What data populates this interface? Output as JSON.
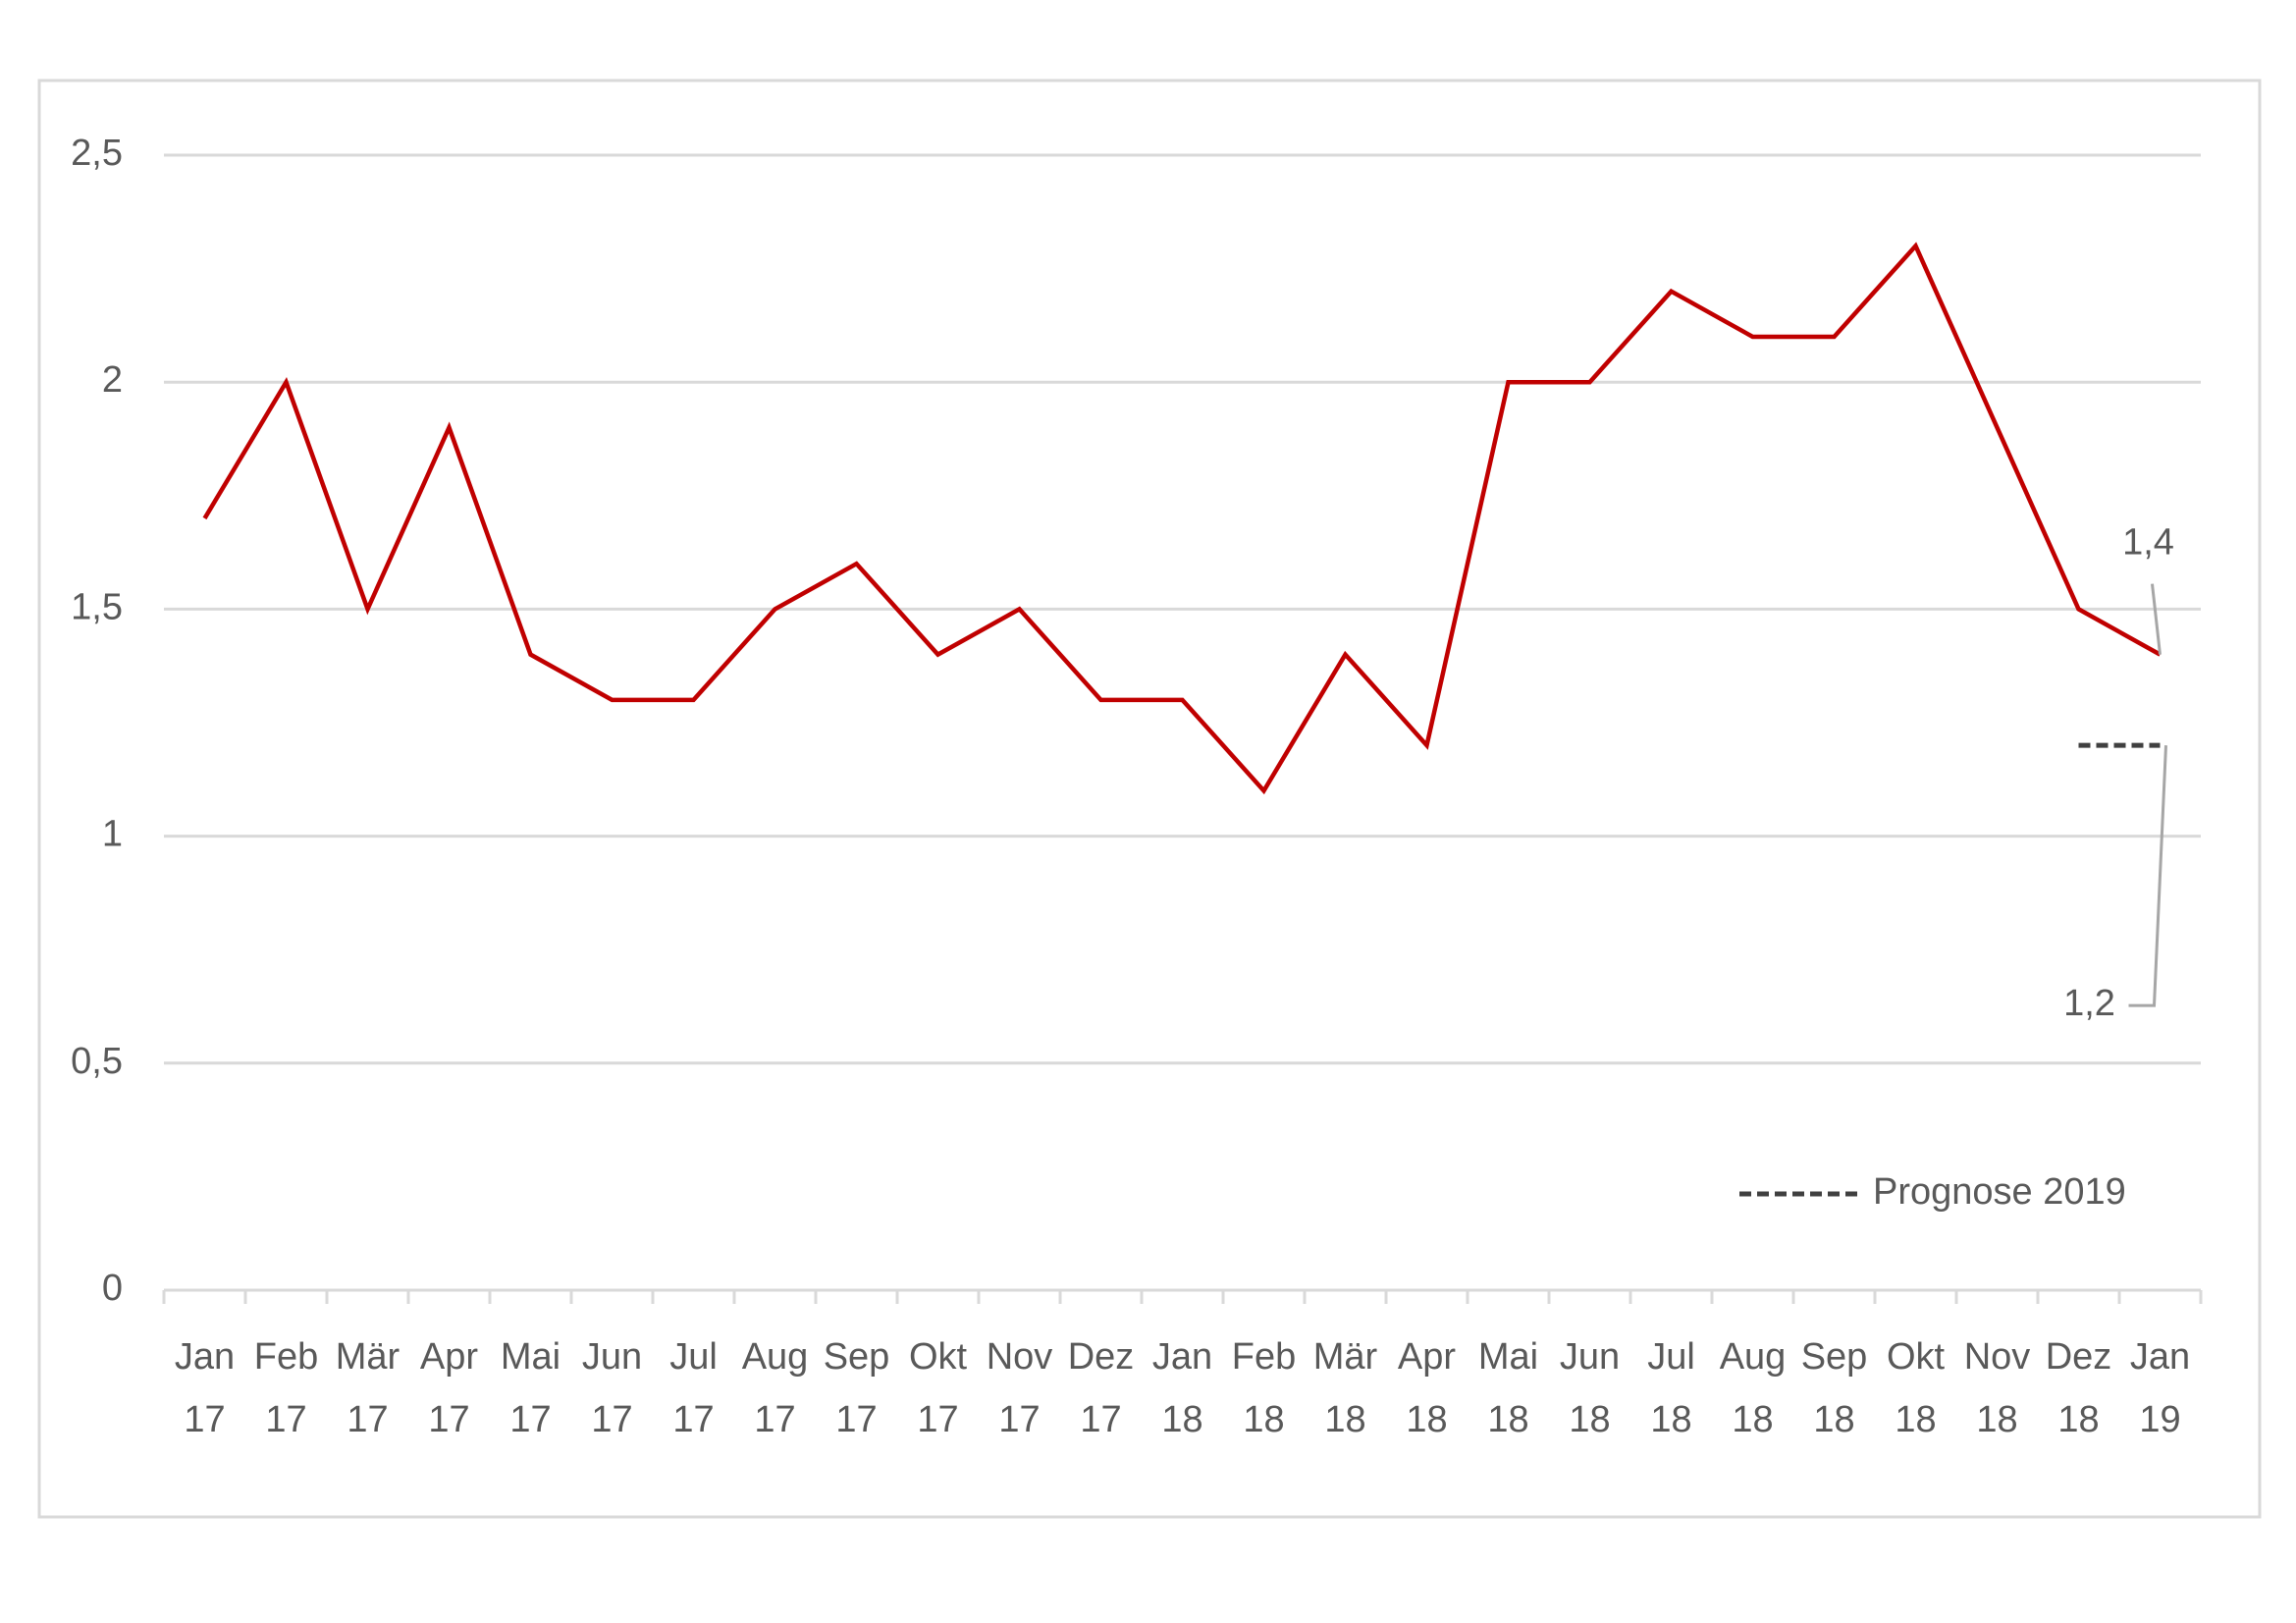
{
  "chart_data": {
    "type": "line",
    "categories": [
      "Jan 17",
      "Feb 17",
      "Mär 17",
      "Apr 17",
      "Mai 17",
      "Jun 17",
      "Jul 17",
      "Aug 17",
      "Sep 17",
      "Okt 17",
      "Nov 17",
      "Dez 17",
      "Jan 18",
      "Feb 18",
      "Mär 18",
      "Apr 18",
      "Mai 18",
      "Jun 18",
      "Jul 18",
      "Aug 18",
      "Sep 18",
      "Okt 18",
      "Nov 18",
      "Dez 18",
      "Jan 19"
    ],
    "series": [
      {
        "color": "#c00000",
        "dash": false,
        "show_in_legend": false,
        "values": [
          1.7,
          2.0,
          1.5,
          1.9,
          1.4,
          1.3,
          1.3,
          1.5,
          1.6,
          1.4,
          1.5,
          1.3,
          1.3,
          1.1,
          1.4,
          1.2,
          2.0,
          2.0,
          2.2,
          2.1,
          2.1,
          2.3,
          1.9,
          1.5,
          1.4
        ],
        "value_labels": [
          null,
          null,
          null,
          null,
          null,
          null,
          null,
          null,
          null,
          null,
          null,
          null,
          null,
          null,
          null,
          null,
          null,
          null,
          null,
          null,
          null,
          null,
          null,
          null,
          "1,4"
        ]
      },
      {
        "name": "Prognose 2019",
        "color": "#404040",
        "dash": true,
        "show_in_legend": true,
        "values": [
          null,
          null,
          null,
          null,
          null,
          null,
          null,
          null,
          null,
          null,
          null,
          null,
          null,
          null,
          null,
          null,
          null,
          null,
          null,
          null,
          null,
          null,
          null,
          1.2,
          1.2
        ],
        "value_labels": [
          null,
          null,
          null,
          null,
          null,
          null,
          null,
          null,
          null,
          null,
          null,
          null,
          null,
          null,
          null,
          null,
          null,
          null,
          null,
          null,
          null,
          null,
          null,
          null,
          "1,2"
        ]
      }
    ],
    "ylim": [
      0,
      2.5
    ],
    "yticks": [
      0,
      {
        "value": 0.5,
        "label": "0,5"
      },
      1,
      {
        "value": 1.5,
        "label": "1,5"
      },
      2,
      {
        "value": 2.5,
        "label": "2,5"
      }
    ],
    "grid": true,
    "legend": "lower right"
  }
}
